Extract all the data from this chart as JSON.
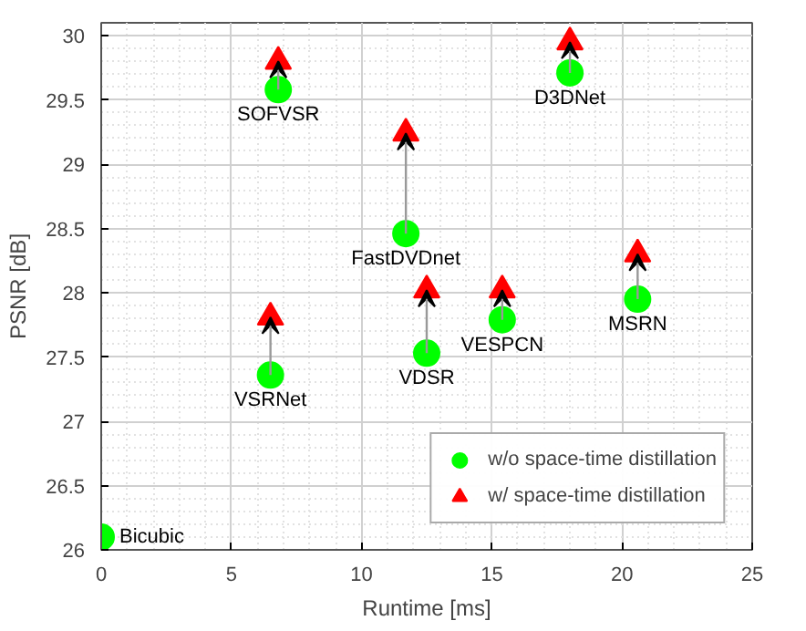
{
  "chart_data": {
    "type": "scatter",
    "xlabel": "Runtime [ms]",
    "ylabel": "PSNR [dB]",
    "x": [
      0,
      6.5,
      6.8,
      11.7,
      12.5,
      15.4,
      18.0,
      20.6
    ],
    "series": [
      {
        "name": "w/o space-time distillation",
        "color": "#00ff00",
        "marker": "circle",
        "values": [
          26.1,
          27.36,
          29.58,
          28.46,
          27.53,
          27.79,
          29.71,
          27.95
        ]
      },
      {
        "name": "w/ space-time distillation",
        "color": "#ff0000",
        "marker": "triangle",
        "values": [
          null,
          27.81,
          29.8,
          29.24,
          28.02,
          28.02,
          29.95,
          28.3
        ]
      }
    ],
    "annotations": [
      {
        "text": "Bicubic",
        "x": 0,
        "y": 26.1
      },
      {
        "text": "VSRNet",
        "x": 6.5,
        "y": 27.36
      },
      {
        "text": "SOFVSR",
        "x": 6.8,
        "y": 29.58
      },
      {
        "text": "FastDVDnet",
        "x": 11.7,
        "y": 28.46
      },
      {
        "text": "VDSR",
        "x": 12.5,
        "y": 27.53
      },
      {
        "text": "VESPCN",
        "x": 15.4,
        "y": 27.79
      },
      {
        "text": "D3DNet",
        "x": 18.0,
        "y": 29.71
      },
      {
        "text": "MSRN",
        "x": 20.6,
        "y": 27.95
      }
    ],
    "xlim": [
      0,
      25
    ],
    "xticks": [
      0,
      5,
      10,
      15,
      20,
      25
    ],
    "ylim": [
      26,
      30.1
    ],
    "yticks": [
      26,
      26.5,
      27,
      27.5,
      28,
      28.5,
      29,
      29.5,
      30
    ],
    "grid": true,
    "legend": "bottom right"
  }
}
